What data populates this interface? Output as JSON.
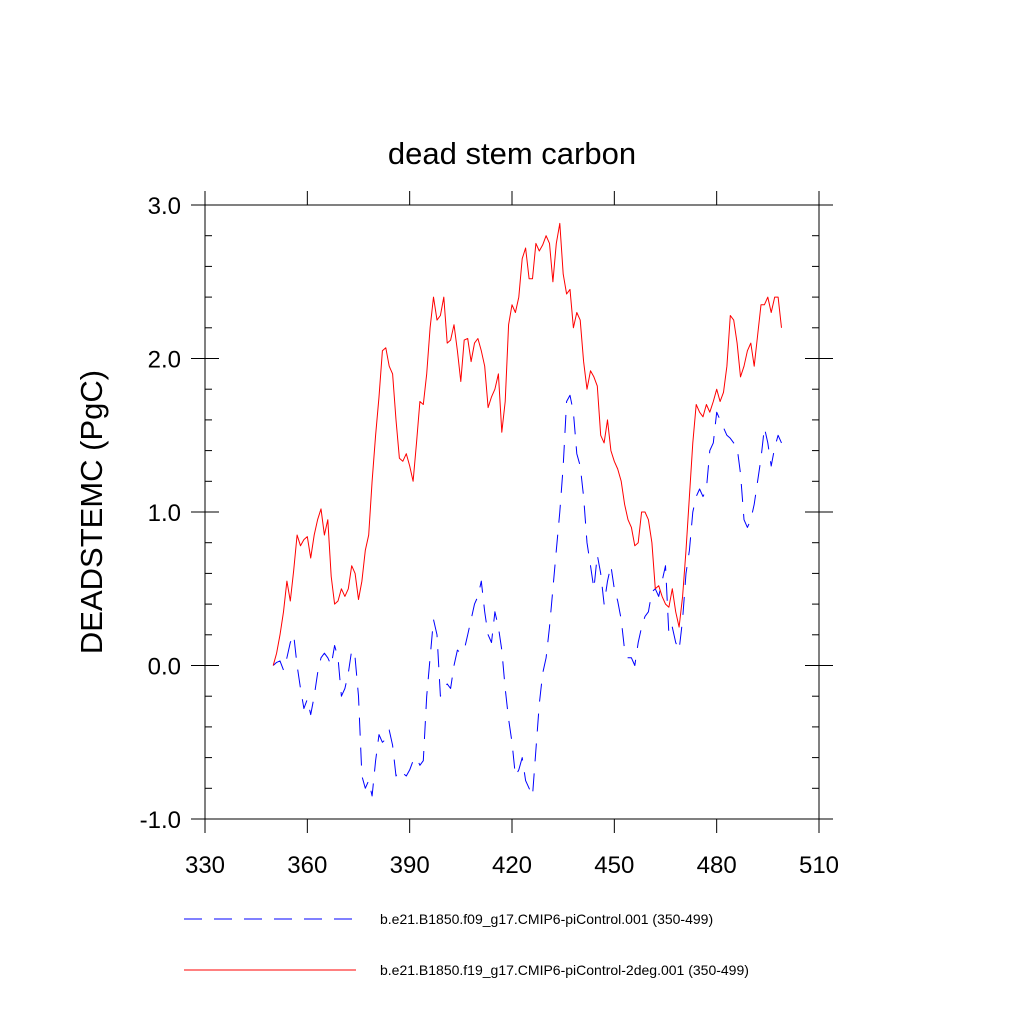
{
  "chart_data": {
    "type": "line",
    "title": "dead stem carbon",
    "xlabel": "",
    "ylabel": "DEADSTEMC  (PgC)",
    "xlim": [
      330,
      510
    ],
    "ylim": [
      -1.0,
      3.0
    ],
    "xticks": [
      330,
      360,
      390,
      420,
      450,
      480,
      510
    ],
    "xtick_labels": [
      "330",
      "360",
      "390",
      "420",
      "450",
      "480",
      "510"
    ],
    "yticks": [
      -1.0,
      0.0,
      1.0,
      2.0,
      3.0
    ],
    "ytick_labels": [
      "-1.0",
      "0.0",
      "1.0",
      "2.0",
      "3.0"
    ],
    "legend_position": "bottom",
    "series": [
      {
        "name": "b.e21.B1850.f09_g17.CMIP6-piControl.001 (350-499)",
        "color": "#0000ff",
        "dash": "dashed",
        "x": [
          350,
          351,
          352,
          353,
          354,
          355,
          356,
          357,
          358,
          359,
          360,
          361,
          362,
          363,
          364,
          365,
          366,
          367,
          368,
          369,
          370,
          371,
          372,
          373,
          374,
          375,
          376,
          377,
          378,
          379,
          380,
          381,
          382,
          383,
          384,
          385,
          386,
          387,
          388,
          389,
          390,
          391,
          392,
          393,
          394,
          395,
          396,
          397,
          398,
          399,
          400,
          401,
          402,
          403,
          404,
          405,
          406,
          407,
          408,
          409,
          410,
          411,
          412,
          413,
          414,
          415,
          416,
          417,
          418,
          419,
          420,
          421,
          422,
          423,
          424,
          425,
          426,
          427,
          428,
          429,
          430,
          431,
          432,
          433,
          434,
          435,
          436,
          437,
          438,
          439,
          440,
          441,
          442,
          443,
          444,
          445,
          446,
          447,
          448,
          449,
          450,
          451,
          452,
          453,
          454,
          455,
          456,
          457,
          458,
          459,
          460,
          461,
          462,
          463,
          464,
          465,
          466,
          467,
          468,
          469,
          470,
          471,
          472,
          473,
          474,
          475,
          476,
          477,
          478,
          479,
          480,
          481,
          482,
          483,
          484,
          485,
          486,
          487,
          488,
          489,
          490,
          491,
          492,
          493,
          494,
          495,
          496,
          497,
          498,
          499
        ],
        "y": [
          0.0,
          0.02,
          0.03,
          -0.03,
          0.05,
          0.15,
          0.2,
          0.0,
          -0.15,
          -0.28,
          -0.22,
          -0.32,
          -0.2,
          -0.05,
          0.05,
          0.08,
          0.05,
          0.0,
          0.13,
          0.05,
          -0.2,
          -0.15,
          -0.05,
          0.1,
          0.05,
          -0.2,
          -0.72,
          -0.8,
          -0.75,
          -0.85,
          -0.62,
          -0.45,
          -0.5,
          -0.48,
          -0.42,
          -0.52,
          -0.72,
          -0.68,
          -0.7,
          -0.72,
          -0.68,
          -0.62,
          -0.6,
          -0.65,
          -0.62,
          -0.2,
          0.05,
          0.3,
          0.2,
          -0.2,
          -0.15,
          -0.12,
          -0.15,
          0.0,
          0.1,
          0.08,
          0.1,
          0.2,
          0.3,
          0.4,
          0.45,
          0.55,
          0.35,
          0.2,
          0.15,
          0.35,
          0.25,
          0.1,
          -0.15,
          -0.35,
          -0.5,
          -0.72,
          -0.68,
          -0.6,
          -0.75,
          -0.8,
          -0.85,
          -0.55,
          -0.25,
          -0.05,
          0.05,
          0.25,
          0.5,
          0.75,
          1.0,
          1.3,
          1.72,
          1.76,
          1.65,
          1.38,
          1.3,
          1.1,
          0.8,
          0.65,
          0.5,
          0.72,
          0.6,
          0.4,
          0.55,
          0.65,
          0.5,
          0.42,
          0.3,
          0.1,
          0.05,
          0.05,
          0.0,
          0.15,
          0.25,
          0.32,
          0.35,
          0.48,
          0.5,
          0.45,
          0.55,
          0.65,
          0.2,
          0.25,
          0.15,
          0.1,
          0.3,
          0.6,
          0.75,
          1.0,
          1.1,
          1.15,
          1.1,
          1.15,
          1.4,
          1.45,
          1.65,
          1.6,
          1.55,
          1.5,
          1.48,
          1.45,
          1.42,
          1.25,
          0.95,
          0.9,
          0.95,
          1.05,
          1.2,
          1.35,
          1.55,
          1.45,
          1.3,
          1.42,
          1.5,
          1.45
        ]
      },
      {
        "name": "b.e21.B1850.f19_g17.CMIP6-piControl-2deg.001 (350-499)",
        "color": "#ff0000",
        "dash": "solid",
        "x": [
          350,
          351,
          352,
          353,
          354,
          355,
          356,
          357,
          358,
          359,
          360,
          361,
          362,
          363,
          364,
          365,
          366,
          367,
          368,
          369,
          370,
          371,
          372,
          373,
          374,
          375,
          376,
          377,
          378,
          379,
          380,
          381,
          382,
          383,
          384,
          385,
          386,
          387,
          388,
          389,
          390,
          391,
          392,
          393,
          394,
          395,
          396,
          397,
          398,
          399,
          400,
          401,
          402,
          403,
          404,
          405,
          406,
          407,
          408,
          409,
          410,
          411,
          412,
          413,
          414,
          415,
          416,
          417,
          418,
          419,
          420,
          421,
          422,
          423,
          424,
          425,
          426,
          427,
          428,
          429,
          430,
          431,
          432,
          433,
          434,
          435,
          436,
          437,
          438,
          439,
          440,
          441,
          442,
          443,
          444,
          445,
          446,
          447,
          448,
          449,
          450,
          451,
          452,
          453,
          454,
          455,
          456,
          457,
          458,
          459,
          460,
          461,
          462,
          463,
          464,
          465,
          466,
          467,
          468,
          469,
          470,
          471,
          472,
          473,
          474,
          475,
          476,
          477,
          478,
          479,
          480,
          481,
          482,
          483,
          484,
          485,
          486,
          487,
          488,
          489,
          490,
          491,
          492,
          493,
          494,
          495,
          496,
          497,
          498,
          499
        ],
        "y": [
          0.0,
          0.08,
          0.2,
          0.35,
          0.55,
          0.42,
          0.62,
          0.85,
          0.78,
          0.82,
          0.84,
          0.7,
          0.85,
          0.95,
          1.02,
          0.85,
          0.95,
          0.58,
          0.4,
          0.42,
          0.5,
          0.45,
          0.5,
          0.65,
          0.6,
          0.43,
          0.55,
          0.75,
          0.85,
          1.2,
          1.5,
          1.75,
          2.05,
          2.07,
          1.95,
          1.9,
          1.6,
          1.35,
          1.33,
          1.38,
          1.3,
          1.2,
          1.45,
          1.72,
          1.7,
          1.9,
          2.2,
          2.4,
          2.25,
          2.28,
          2.4,
          2.1,
          2.12,
          2.22,
          2.05,
          1.85,
          2.12,
          2.13,
          1.98,
          2.1,
          2.13,
          2.05,
          1.95,
          1.68,
          1.75,
          1.8,
          1.9,
          1.52,
          1.72,
          2.22,
          2.35,
          2.3,
          2.4,
          2.65,
          2.72,
          2.52,
          2.52,
          2.75,
          2.7,
          2.74,
          2.8,
          2.75,
          2.5,
          2.75,
          2.88,
          2.55,
          2.42,
          2.45,
          2.2,
          2.3,
          2.25,
          1.98,
          1.8,
          1.92,
          1.88,
          1.82,
          1.5,
          1.45,
          1.6,
          1.4,
          1.33,
          1.28,
          1.2,
          1.05,
          0.95,
          0.9,
          0.78,
          0.8,
          1.0,
          1.0,
          0.95,
          0.8,
          0.5,
          0.52,
          0.45,
          0.4,
          0.38,
          0.5,
          0.35,
          0.25,
          0.45,
          0.75,
          1.1,
          1.45,
          1.7,
          1.65,
          1.62,
          1.7,
          1.65,
          1.72,
          1.8,
          1.72,
          1.78,
          1.95,
          2.28,
          2.25,
          2.1,
          1.88,
          1.95,
          2.05,
          2.1,
          1.95,
          2.15,
          2.35,
          2.35,
          2.4,
          2.3,
          2.4,
          2.4,
          2.2
        ]
      }
    ]
  }
}
